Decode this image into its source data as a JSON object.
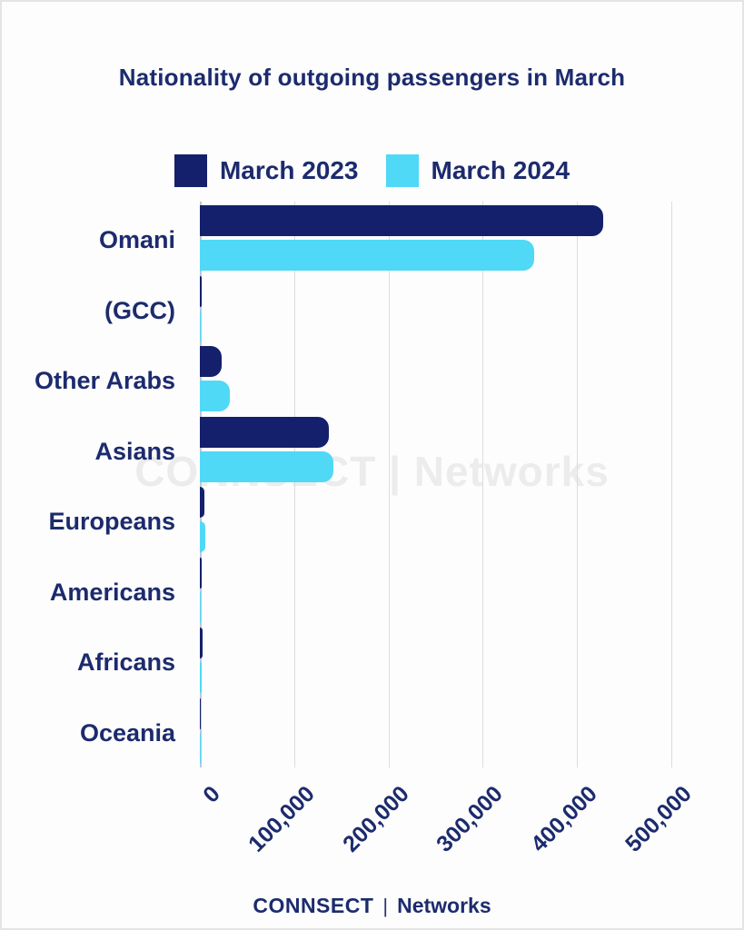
{
  "title": "Nationality of outgoing passengers in March",
  "colors": {
    "navy_bar": "#14206b",
    "cyan_bar": "#4fd9f6",
    "text_navy": "#1c2b6d",
    "gridline": "#dcdcdc",
    "watermark_gray": "#ececec"
  },
  "legend": {
    "items": [
      {
        "label": "March 2023",
        "color": "#14206b"
      },
      {
        "label": "March 2024",
        "color": "#4fd9f6"
      }
    ]
  },
  "chart_data": {
    "type": "bar",
    "orientation": "horizontal",
    "title": "Nationality of outgoing passengers in March",
    "categories": [
      "Omani",
      "(GCC)",
      "Other Arabs",
      "Asians",
      "Europeans",
      "Americans",
      "Africans",
      "Oceania"
    ],
    "series": [
      {
        "name": "March 2023",
        "color": "#14206b",
        "values": [
          428000,
          1500,
          23000,
          137000,
          4500,
          2000,
          2500,
          300
        ]
      },
      {
        "name": "March 2024",
        "color": "#4fd9f6",
        "values": [
          355000,
          1000,
          32000,
          142000,
          5500,
          1200,
          2000,
          200
        ]
      }
    ],
    "xlim": [
      0,
      500000
    ],
    "x_tick_values": [
      0,
      100000,
      200000,
      300000,
      400000,
      500000
    ],
    "x_tick_labels": [
      "0",
      "100,000",
      "200,000",
      "300,000",
      "400,000",
      "500,000"
    ],
    "grid": true,
    "legend_position": "top"
  },
  "watermark": "CONNSECT | Networks",
  "footer": {
    "brand": "CONNSECT",
    "separator": "|",
    "brand2": "Networks"
  }
}
